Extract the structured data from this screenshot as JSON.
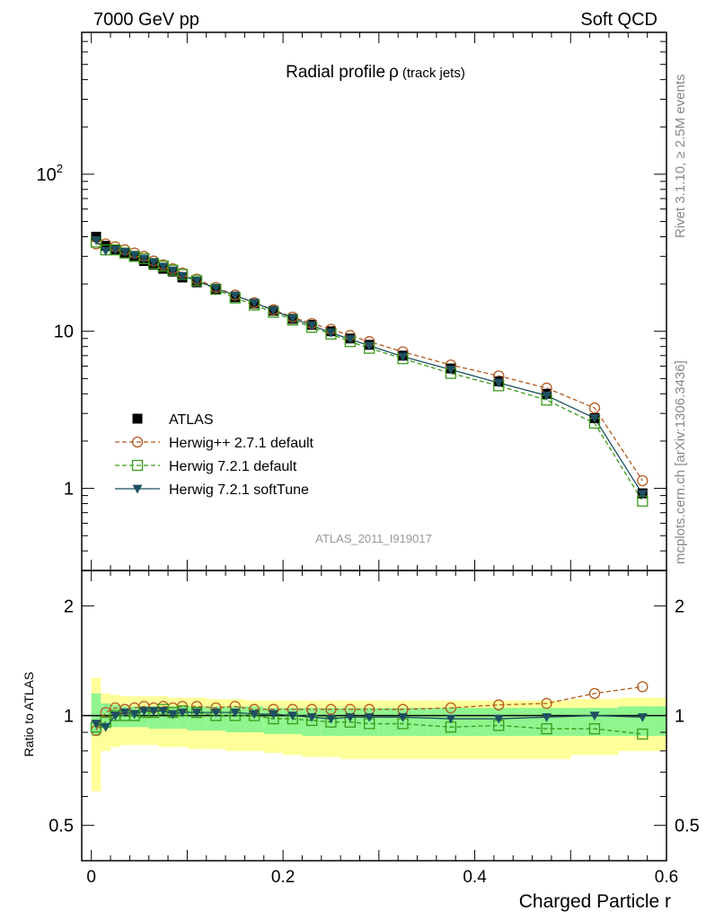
{
  "header": {
    "left": "7000 GeV pp",
    "right": "Soft QCD"
  },
  "title": {
    "main": "Radial profile",
    "symbol": "ρ",
    "suffix": "(track jets)"
  },
  "side_labels": {
    "rivet": "Rivet 3.1.10, ≥ 2.5M events",
    "mcplots": "mcplots.cern.ch [arXiv:1306.3436]"
  },
  "watermark": "ATLAS_2011_I919017",
  "xlabel": "Charged Particle r",
  "ratio_ylabel": "Ratio to ATLAS",
  "colors": {
    "herwigpp": "#b35a1f",
    "herwig_default": "#3a9a1a",
    "herwig_soft": "#1e4f60",
    "band_yellow": "#ffff99",
    "band_green": "#8ff58f"
  },
  "chart_data": [
    {
      "type": "scatter",
      "panel": "main",
      "yscale": "log",
      "ylim": [
        0.3,
        800
      ],
      "xlim": [
        -0.01,
        0.6
      ],
      "y_ticks": [
        {
          "v": 1,
          "label": "1"
        },
        {
          "v": 10,
          "label": "10"
        },
        {
          "v": 100,
          "label": "10",
          "sup": "2"
        }
      ],
      "x": [
        0.005,
        0.015,
        0.025,
        0.035,
        0.045,
        0.055,
        0.065,
        0.075,
        0.085,
        0.095,
        0.11,
        0.13,
        0.15,
        0.17,
        0.19,
        0.21,
        0.23,
        0.25,
        0.27,
        0.29,
        0.325,
        0.375,
        0.425,
        0.475,
        0.525,
        0.575
      ],
      "series": [
        {
          "name": "ATLAS",
          "marker": "square-filled",
          "values": [
            40,
            35,
            33,
            31.5,
            30,
            28,
            26.5,
            25,
            24,
            22,
            20.5,
            18.5,
            16.5,
            15,
            13.5,
            12,
            11,
            10,
            9,
            8.2,
            7,
            5.8,
            4.8,
            4,
            2.8,
            0.93
          ]
        },
        {
          "name": "Herwig++ 2.7.1 default",
          "marker": "circle-open",
          "line": "dashed",
          "values": [
            36,
            36,
            34.5,
            33,
            31.5,
            30,
            28,
            26.5,
            25,
            23.5,
            21.5,
            19,
            17,
            15.2,
            13.7,
            12.3,
            11.2,
            10.3,
            9.4,
            8.6,
            7.4,
            6.1,
            5.2,
            4.35,
            3.25,
            1.12
          ]
        },
        {
          "name": "Herwig 7.2.1 default",
          "marker": "square-open",
          "line": "dashed",
          "values": [
            37,
            33,
            33,
            31.5,
            30,
            29,
            27,
            26,
            24.5,
            23,
            21,
            18.5,
            16.3,
            14.7,
            13.2,
            11.8,
            10.6,
            9.6,
            8.6,
            7.8,
            6.7,
            5.4,
            4.5,
            3.65,
            2.6,
            0.83
          ]
        },
        {
          "name": "Herwig 7.2.1 softTune",
          "marker": "triangle-down-filled",
          "line": "solid",
          "values": [
            38,
            32.5,
            33,
            32,
            30.5,
            29,
            27.5,
            25.8,
            24.3,
            22.5,
            21,
            18.8,
            16.9,
            15.2,
            13.6,
            12.1,
            10.9,
            9.8,
            8.9,
            8.1,
            6.9,
            5.7,
            4.7,
            3.9,
            2.8,
            0.92
          ]
        }
      ]
    },
    {
      "type": "scatter",
      "panel": "ratio",
      "yscale": "log",
      "ylim": [
        0.4,
        2.5
      ],
      "xlim": [
        -0.01,
        0.6
      ],
      "y_ticks": [
        {
          "v": 0.5,
          "label": "0.5"
        },
        {
          "v": 1,
          "label": "1"
        },
        {
          "v": 2,
          "label": "2"
        }
      ],
      "x_ticks": [
        {
          "v": 0,
          "label": "0"
        },
        {
          "v": 0.2,
          "label": "0.2"
        },
        {
          "v": 0.4,
          "label": "0.4"
        },
        {
          "v": 0.6,
          "label": "0.6"
        }
      ],
      "bins": [
        [
          0,
          0.01
        ],
        [
          0.01,
          0.02
        ],
        [
          0.02,
          0.03
        ],
        [
          0.03,
          0.04
        ],
        [
          0.04,
          0.05
        ],
        [
          0.05,
          0.06
        ],
        [
          0.06,
          0.07
        ],
        [
          0.07,
          0.08
        ],
        [
          0.08,
          0.09
        ],
        [
          0.09,
          0.1
        ],
        [
          0.1,
          0.12
        ],
        [
          0.12,
          0.14
        ],
        [
          0.14,
          0.16
        ],
        [
          0.16,
          0.18
        ],
        [
          0.18,
          0.2
        ],
        [
          0.2,
          0.22
        ],
        [
          0.22,
          0.24
        ],
        [
          0.24,
          0.26
        ],
        [
          0.26,
          0.28
        ],
        [
          0.28,
          0.3
        ],
        [
          0.3,
          0.35
        ],
        [
          0.35,
          0.4
        ],
        [
          0.4,
          0.45
        ],
        [
          0.45,
          0.5
        ],
        [
          0.5,
          0.55
        ],
        [
          0.55,
          0.6
        ]
      ],
      "band_yellow": [
        [
          0.62,
          1.27
        ],
        [
          0.8,
          1.15
        ],
        [
          0.82,
          1.14
        ],
        [
          0.83,
          1.13
        ],
        [
          0.83,
          1.13
        ],
        [
          0.83,
          1.13
        ],
        [
          0.83,
          1.13
        ],
        [
          0.82,
          1.13
        ],
        [
          0.82,
          1.12
        ],
        [
          0.82,
          1.12
        ],
        [
          0.81,
          1.12
        ],
        [
          0.81,
          1.11
        ],
        [
          0.8,
          1.11
        ],
        [
          0.8,
          1.1
        ],
        [
          0.79,
          1.1
        ],
        [
          0.78,
          1.1
        ],
        [
          0.77,
          1.1
        ],
        [
          0.77,
          1.1
        ],
        [
          0.76,
          1.1
        ],
        [
          0.76,
          1.1
        ],
        [
          0.76,
          1.1
        ],
        [
          0.76,
          1.1
        ],
        [
          0.76,
          1.1
        ],
        [
          0.76,
          1.1
        ],
        [
          0.78,
          1.11
        ],
        [
          0.8,
          1.12
        ]
      ],
      "band_green": [
        [
          0.88,
          1.15
        ],
        [
          0.92,
          1.08
        ],
        [
          0.93,
          1.07
        ],
        [
          0.93,
          1.06
        ],
        [
          0.93,
          1.06
        ],
        [
          0.93,
          1.06
        ],
        [
          0.92,
          1.06
        ],
        [
          0.92,
          1.06
        ],
        [
          0.92,
          1.06
        ],
        [
          0.92,
          1.06
        ],
        [
          0.91,
          1.06
        ],
        [
          0.91,
          1.06
        ],
        [
          0.9,
          1.06
        ],
        [
          0.9,
          1.06
        ],
        [
          0.89,
          1.05
        ],
        [
          0.89,
          1.05
        ],
        [
          0.88,
          1.05
        ],
        [
          0.88,
          1.05
        ],
        [
          0.88,
          1.05
        ],
        [
          0.88,
          1.05
        ],
        [
          0.88,
          1.05
        ],
        [
          0.88,
          1.05
        ],
        [
          0.88,
          1.05
        ],
        [
          0.88,
          1.05
        ],
        [
          0.88,
          1.05
        ],
        [
          0.88,
          1.06
        ]
      ],
      "x": [
        0.005,
        0.015,
        0.025,
        0.035,
        0.045,
        0.055,
        0.065,
        0.075,
        0.085,
        0.095,
        0.11,
        0.13,
        0.15,
        0.17,
        0.19,
        0.21,
        0.23,
        0.25,
        0.27,
        0.29,
        0.325,
        0.375,
        0.425,
        0.475,
        0.525,
        0.575
      ],
      "series": [
        {
          "name": "Herwig++ 2.7.1 default",
          "values": [
            0.91,
            1.02,
            1.05,
            1.04,
            1.05,
            1.06,
            1.05,
            1.06,
            1.05,
            1.06,
            1.06,
            1.05,
            1.06,
            1.04,
            1.04,
            1.04,
            1.04,
            1.04,
            1.04,
            1.04,
            1.04,
            1.05,
            1.07,
            1.08,
            1.15,
            1.2
          ]
        },
        {
          "name": "Herwig 7.2.1 default",
          "values": [
            0.93,
            0.96,
            1.0,
            1.0,
            1.0,
            1.02,
            1.02,
            1.04,
            1.02,
            1.03,
            1.02,
            1.0,
            1.0,
            1.0,
            0.98,
            0.98,
            0.97,
            0.96,
            0.96,
            0.95,
            0.95,
            0.93,
            0.94,
            0.92,
            0.92,
            0.89
          ]
        },
        {
          "name": "Herwig 7.2.1 softTune",
          "values": [
            0.95,
            0.93,
            1.0,
            1.02,
            1.01,
            1.03,
            1.03,
            1.03,
            1.01,
            1.02,
            1.02,
            1.02,
            1.02,
            1.01,
            1.01,
            1.0,
            0.99,
            0.98,
            0.99,
            0.99,
            0.99,
            0.98,
            0.98,
            0.99,
            1.0,
            0.99
          ]
        }
      ]
    }
  ]
}
